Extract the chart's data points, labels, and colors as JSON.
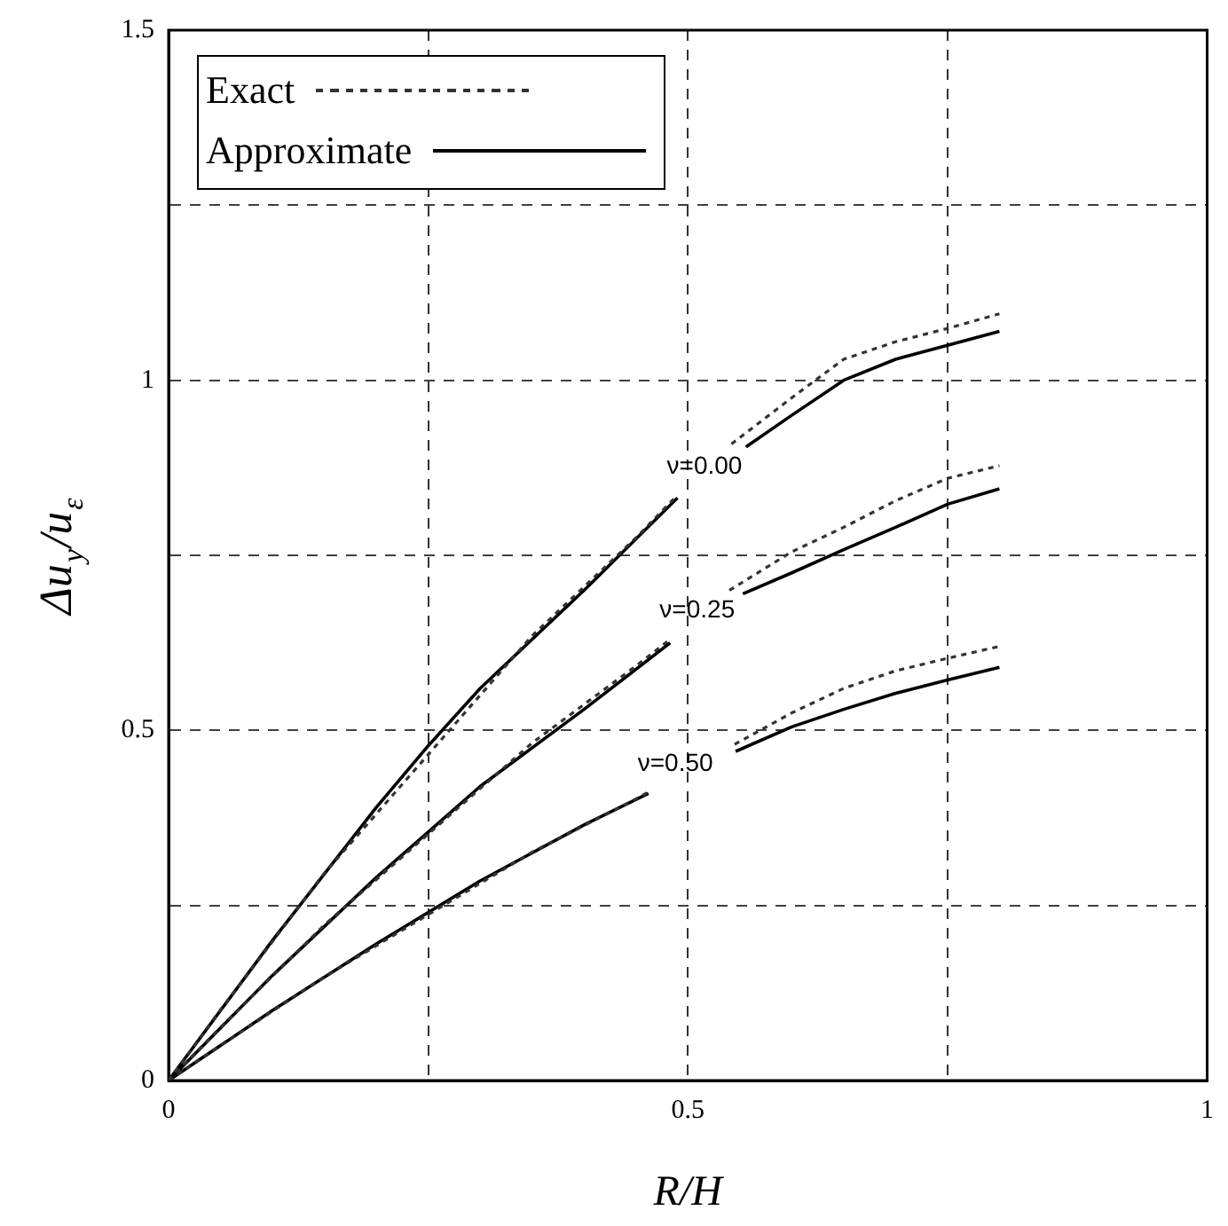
{
  "chart_data": {
    "type": "line",
    "xlabel": "R/H",
    "ylabel": "Δu$_{y}$/u$_{ε}$",
    "xlim": [
      0,
      1
    ],
    "xticks": [
      0,
      {
        "value": 0.25,
        "label": null
      },
      0.5,
      {
        "value": 0.75,
        "label": null
      },
      1
    ],
    "ylim": [
      0,
      1.5
    ],
    "yticks": [
      0,
      {
        "value": 0.25,
        "label": null
      },
      0.5,
      {
        "value": 0.75,
        "label": null
      },
      1,
      {
        "value": 1.25,
        "label": null
      },
      1.5
    ],
    "grid": true,
    "legend": "top left",
    "marker": "none",
    "series": [
      {
        "name": "Exact",
        "color": "#333333",
        "line_style": "dotted",
        "x": [
          0,
          0.05,
          0.15,
          0.35,
          0.45,
          0.49,
          null,
          0.542,
          0.6,
          0.65,
          0.7,
          0.75,
          0.8
        ],
        "values": [
          0,
          0.101,
          0.296,
          0.635,
          0.775,
          0.836,
          null,
          0.909,
          0.975,
          1.03,
          1.055,
          1.074,
          1.095
        ]
      },
      {
        "name": "Approximate",
        "color": "#000000",
        "line_style": "solid",
        "x": [
          0,
          0.1,
          0.2,
          0.25,
          0.3,
          0.4,
          0.49,
          null,
          0.556,
          0.6,
          0.65,
          0.7,
          0.75,
          0.8
        ],
        "values": [
          0,
          0.2,
          0.39,
          0.478,
          0.56,
          0.7,
          0.832,
          null,
          0.905,
          0.95,
          1.0,
          1.03,
          1.05,
          1.07
        ]
      },
      {
        "color": "#333333",
        "line_style": "dotted",
        "x": [
          0,
          0.05,
          0.15,
          0.35,
          0.45,
          0.483,
          null,
          0.54,
          0.6,
          0.65,
          0.7,
          0.75,
          0.8
        ],
        "values": [
          0,
          0.076,
          0.222,
          0.482,
          0.592,
          0.63,
          null,
          0.7,
          0.755,
          0.79,
          0.828,
          0.86,
          0.878
        ]
      },
      {
        "color": "#000000",
        "line_style": "solid",
        "x": [
          0,
          0.1,
          0.2,
          0.3,
          0.4,
          0.483,
          null,
          0.553,
          0.6,
          0.65,
          0.7,
          0.75,
          0.8
        ],
        "values": [
          0,
          0.15,
          0.29,
          0.42,
          0.53,
          0.625,
          null,
          0.695,
          0.725,
          0.758,
          0.79,
          0.823,
          0.845
        ]
      },
      {
        "color": "#333333",
        "line_style": "dotted",
        "x": [
          0,
          0.05,
          0.15,
          0.35,
          0.45,
          0.462,
          null,
          0.545,
          0.6,
          0.65,
          0.7,
          0.75,
          0.8
        ],
        "values": [
          0,
          0.05,
          0.148,
          0.326,
          0.402,
          0.412,
          null,
          0.48,
          0.525,
          0.56,
          0.585,
          0.603,
          0.62
        ]
      },
      {
        "color": "#000000",
        "line_style": "solid",
        "x": [
          0,
          0.1,
          0.2,
          0.3,
          0.4,
          0.462,
          null,
          0.546,
          0.6,
          0.65,
          0.7,
          0.75,
          0.8
        ],
        "values": [
          0,
          0.1,
          0.195,
          0.285,
          0.365,
          0.41,
          null,
          0.47,
          0.505,
          0.53,
          0.553,
          0.572,
          0.59
        ]
      }
    ],
    "annotations": [
      {
        "text": "ν=0.00",
        "x": 0.49,
        "y": 0.836
      },
      {
        "text": "ν=0.25",
        "x": 0.483,
        "y": 0.63
      },
      {
        "text": "ν=0.50",
        "x": 0.462,
        "y": 0.412
      }
    ]
  }
}
